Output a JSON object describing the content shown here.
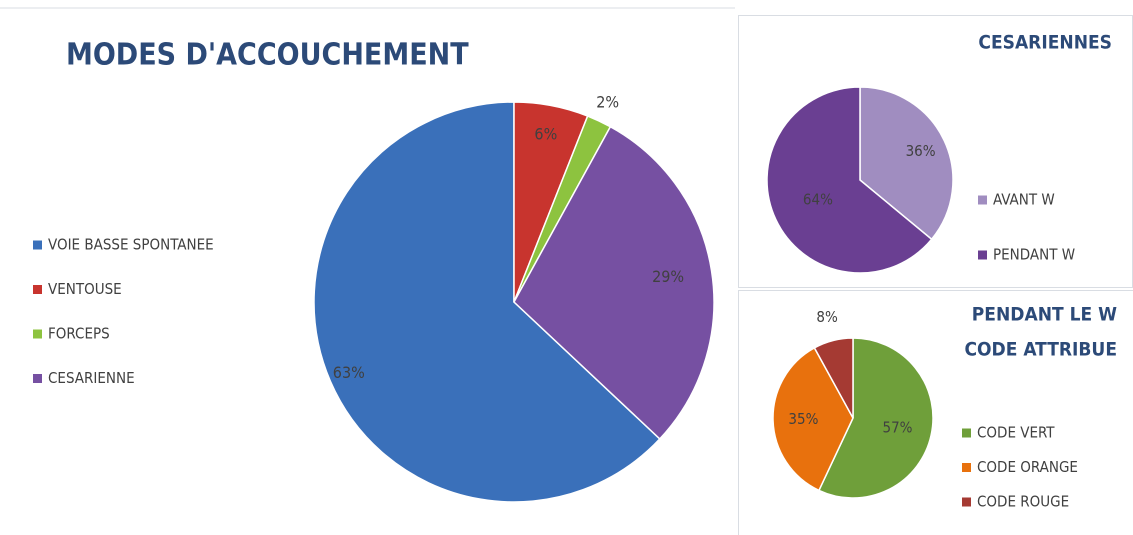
{
  "chart_data": [
    {
      "type": "pie",
      "title": "MODES D'ACCOUCHEMENT",
      "categories": [
        "VOIE BASSE SPONTANEE",
        "VENTOUSE",
        "FORCEPS",
        "CESARIENNE"
      ],
      "values": [
        63,
        6,
        2,
        29
      ],
      "value_labels": [
        "63%",
        "6%",
        "2%",
        "29%"
      ],
      "colors": [
        "#3a70ba",
        "#c8342e",
        "#8dc33f",
        "#7650a2"
      ]
    },
    {
      "type": "pie",
      "title": "CESARIENNES",
      "categories": [
        "AVANT W",
        "PENDANT W"
      ],
      "values": [
        36,
        64
      ],
      "value_labels": [
        "36%",
        "64%"
      ],
      "colors": [
        "#a08dc0",
        "#6a3f92"
      ]
    },
    {
      "type": "pie",
      "title": [
        "PENDANT LE W",
        "CODE ATTRIBUE"
      ],
      "categories": [
        "CODE VERT",
        "CODE ORANGE",
        "CODE ROUGE"
      ],
      "values": [
        57,
        35,
        8
      ],
      "value_labels": [
        "57%",
        "35%",
        "8%"
      ],
      "colors": [
        "#6f9f3a",
        "#e8710d",
        "#a53a33"
      ]
    }
  ]
}
